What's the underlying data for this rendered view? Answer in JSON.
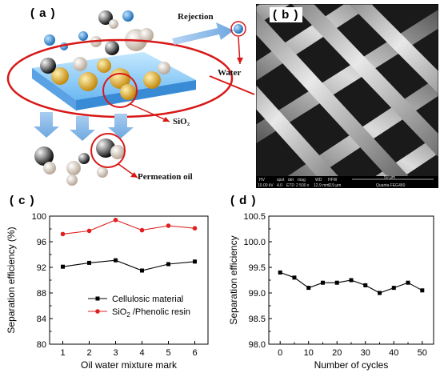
{
  "panel_a": {
    "label": "( a )",
    "annotations": {
      "rejection": "Rejection",
      "water": "Water",
      "sio2": "SiO₂",
      "permeation": "Permeation oil"
    }
  },
  "panel_b": {
    "label": "( b )",
    "sem_bar": {
      "labels": [
        "HV",
        "spot",
        "det",
        "mag",
        "WD",
        "HFW"
      ],
      "values": [
        "10.00 kV",
        "4.0",
        "ETD",
        "2 500 x",
        "12.9 mm",
        "119 µm"
      ],
      "scale_text": "50 µm",
      "instrument": "Quanta FEG450"
    }
  },
  "panel_c": {
    "label": "( c )"
  },
  "panel_d": {
    "label": "( d )"
  },
  "chart_data": [
    {
      "type": "line",
      "panel": "c",
      "xlabel": "Oil water mixture mark",
      "ylabel": "Separation efficiency (%)",
      "x": [
        1,
        2,
        3,
        4,
        5,
        6
      ],
      "xlim": [
        0.5,
        6.5
      ],
      "ylim": [
        80,
        100
      ],
      "xticks": [
        "1",
        "2",
        "3",
        "4",
        "5",
        "6"
      ],
      "yticks": [
        "80",
        "84",
        "88",
        "92",
        "96",
        "100"
      ],
      "series": [
        {
          "name": "Cellulosic material",
          "color": "#000000",
          "marker": "square",
          "values": [
            92.1,
            92.7,
            93.1,
            91.5,
            92.5,
            92.9
          ]
        },
        {
          "name": "SiO2 /Phenolic resin",
          "name_parts": [
            "SiO",
            "2",
            " /Phenolic resin"
          ],
          "color": "#e02020",
          "marker": "circle",
          "values": [
            97.2,
            97.7,
            99.4,
            97.8,
            98.5,
            98.1
          ]
        }
      ],
      "legend": "center"
    },
    {
      "type": "line",
      "panel": "d",
      "xlabel": "Number of cycles",
      "ylabel": "Separation efficiency",
      "x": [
        0,
        5,
        10,
        15,
        20,
        25,
        30,
        35,
        40,
        45,
        50
      ],
      "xlim": [
        -4,
        54
      ],
      "ylim": [
        98.0,
        100.5
      ],
      "xticks": [
        "0",
        "10",
        "20",
        "30",
        "40",
        "50"
      ],
      "yticks": [
        "98.0",
        "98.5",
        "99.0",
        "99.5",
        "100.0",
        "100.5"
      ],
      "series": [
        {
          "color": "#000000",
          "marker": "square",
          "values": [
            99.4,
            99.3,
            99.1,
            99.2,
            99.2,
            99.25,
            99.15,
            99.0,
            99.1,
            99.2,
            99.05
          ]
        }
      ]
    }
  ]
}
